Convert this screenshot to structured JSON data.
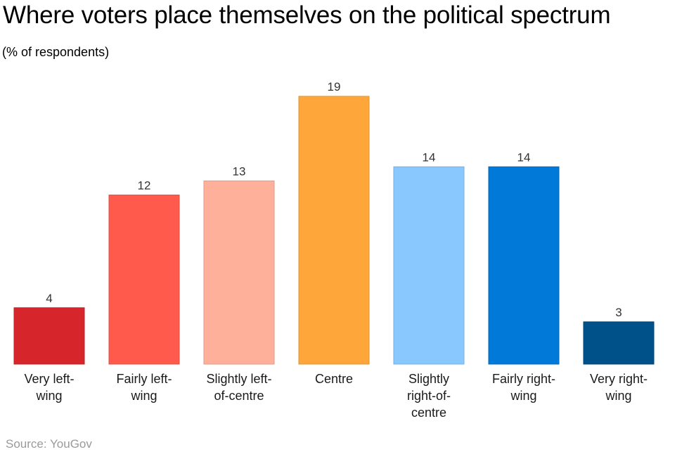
{
  "title": "Where voters place themselves on the political spectrum",
  "subtitle": "(% of respondents)",
  "source": "Source: YouGov",
  "chart_data": {
    "type": "bar",
    "categories": [
      [
        "Very left-",
        "wing"
      ],
      [
        "Fairly left-",
        "wing"
      ],
      [
        "Slightly left-",
        "of-centre"
      ],
      [
        "Centre"
      ],
      [
        "Slightly",
        "right-of-",
        "centre"
      ],
      [
        "Fairly right-",
        "wing"
      ],
      [
        "Very right-",
        "wing"
      ]
    ],
    "values": [
      4,
      12,
      13,
      19,
      14,
      14,
      3
    ],
    "colors": [
      "#d7262b",
      "#ff5a4b",
      "#ffb09b",
      "#ffa63b",
      "#88c8ff",
      "#0079d8",
      "#005089"
    ],
    "ylim": [
      0,
      19
    ]
  }
}
